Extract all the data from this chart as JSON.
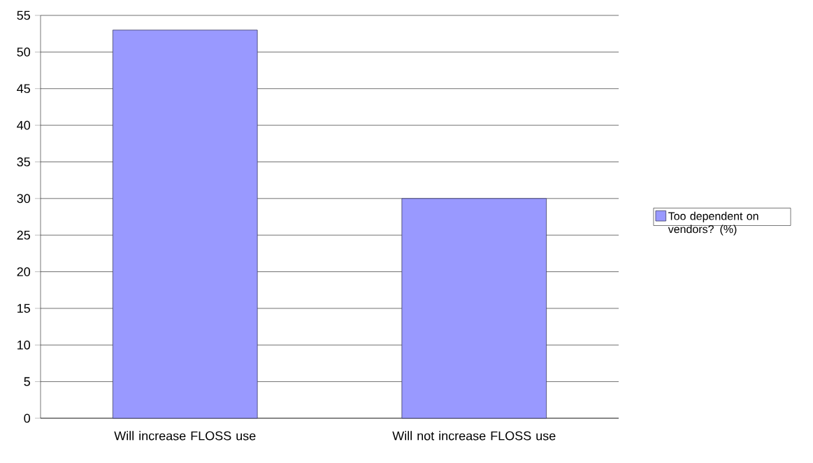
{
  "chart_data": {
    "type": "bar",
    "categories": [
      "Will increase FLOSS use",
      "Will not increase FLOSS use"
    ],
    "series": [
      {
        "name": "Too dependent on vendors? (%)",
        "color": "#9999ff",
        "values": [
          53,
          30
        ]
      }
    ],
    "ylim": [
      0,
      55
    ],
    "yticks": [
      0,
      5,
      10,
      15,
      20,
      25,
      30,
      35,
      40,
      45,
      50,
      55
    ],
    "grid": "y",
    "legend": "right"
  }
}
